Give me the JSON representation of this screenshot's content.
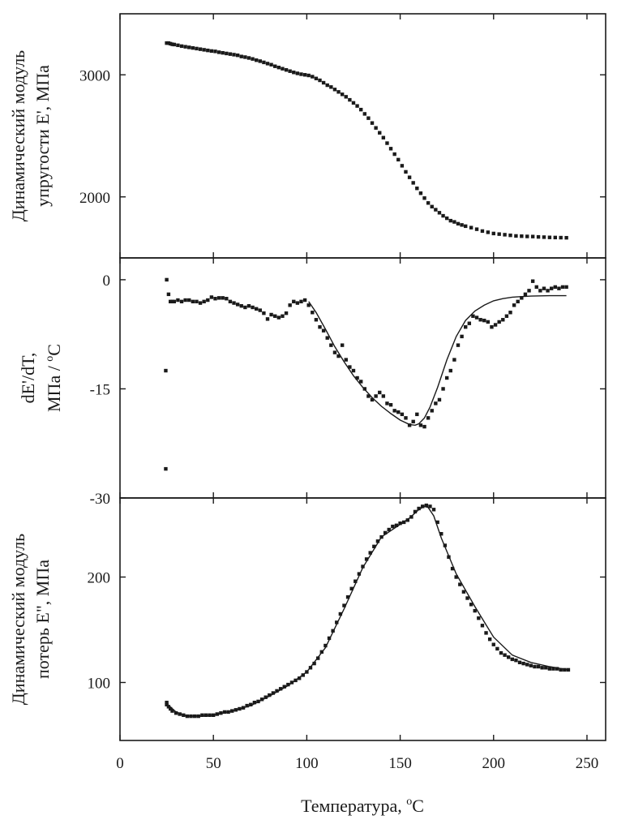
{
  "figure": {
    "xlabel": "Температура, ",
    "xlabel_unit": "C",
    "degree_symbol": "o"
  },
  "chart_data": [
    {
      "type": "scatter",
      "panel": "top",
      "ylabel_lines": [
        "Динамический модуль",
        "упругости E', МПа"
      ],
      "xlim": [
        0,
        260
      ],
      "ylim": [
        1500,
        3500
      ],
      "xticks": [
        0,
        50,
        100,
        150,
        200,
        250
      ],
      "yticks": [
        2000,
        3000
      ],
      "ytick_labels": [
        "2000",
        "3000"
      ],
      "series": [
        {
          "name": "E'",
          "style": "markers",
          "x": [
            25,
            26,
            27,
            28,
            29,
            31,
            33,
            35,
            37,
            39,
            41,
            43,
            45,
            47,
            49,
            51,
            53,
            55,
            57,
            59,
            61,
            63,
            65,
            67,
            69,
            71,
            73,
            75,
            77,
            79,
            81,
            83,
            85,
            87,
            89,
            91,
            93,
            95,
            97,
            99,
            101,
            103,
            105,
            107,
            109,
            111,
            113,
            115,
            117,
            119,
            121,
            123,
            125,
            127,
            129,
            131,
            133,
            135,
            137,
            139,
            141,
            143,
            145,
            147,
            149,
            151,
            153,
            155,
            157,
            159,
            161,
            163,
            165,
            167,
            169,
            171,
            173,
            175,
            177,
            179,
            181,
            183,
            185,
            188,
            191,
            194,
            197,
            200,
            203,
            206,
            209,
            212,
            215,
            218,
            221,
            224,
            227,
            230,
            233,
            236,
            239
          ],
          "y": [
            3260,
            3260,
            3255,
            3250,
            3248,
            3242,
            3235,
            3230,
            3225,
            3220,
            3215,
            3210,
            3205,
            3200,
            3195,
            3192,
            3185,
            3180,
            3175,
            3170,
            3165,
            3160,
            3150,
            3145,
            3138,
            3130,
            3120,
            3112,
            3102,
            3092,
            3083,
            3070,
            3060,
            3050,
            3040,
            3030,
            3020,
            3012,
            3005,
            3000,
            2995,
            2985,
            2970,
            2955,
            2935,
            2915,
            2900,
            2880,
            2860,
            2840,
            2820,
            2795,
            2770,
            2745,
            2715,
            2680,
            2645,
            2605,
            2565,
            2525,
            2485,
            2440,
            2395,
            2350,
            2305,
            2255,
            2205,
            2160,
            2115,
            2070,
            2030,
            1990,
            1950,
            1920,
            1895,
            1870,
            1845,
            1825,
            1805,
            1795,
            1780,
            1770,
            1760,
            1748,
            1735,
            1720,
            1710,
            1700,
            1695,
            1690,
            1685,
            1680,
            1678,
            1676,
            1675,
            1672,
            1670,
            1668,
            1667,
            1666,
            1665
          ]
        }
      ]
    },
    {
      "type": "scatter",
      "panel": "middle",
      "ylabel_lines": [
        "dE'/dT,",
        "МПа / ",
        "C"
      ],
      "xlim": [
        0,
        260
      ],
      "ylim": [
        -30,
        3
      ],
      "xticks": [
        0,
        50,
        100,
        150,
        200,
        250
      ],
      "yticks": [
        -30,
        -15,
        0
      ],
      "ytick_labels": [
        "-30",
        "-15",
        "0"
      ],
      "series": [
        {
          "name": "dE'/dT",
          "style": "markers",
          "x": [
            24.5,
            24.5,
            25,
            26,
            27,
            28,
            29,
            31,
            33,
            35,
            37,
            39,
            41,
            43,
            45,
            47,
            49,
            51,
            53,
            55,
            57,
            59,
            61,
            63,
            65,
            67,
            69,
            71,
            73,
            75,
            77,
            79,
            81,
            83,
            85,
            87,
            89,
            91,
            93,
            95,
            97,
            99,
            101,
            103,
            105,
            107,
            109,
            111,
            113,
            115,
            117,
            119,
            121,
            123,
            125,
            127,
            129,
            131,
            133,
            135,
            137,
            139,
            141,
            143,
            145,
            147,
            149,
            151,
            153,
            155,
            157,
            159,
            161,
            163,
            165,
            167,
            169,
            171,
            173,
            175,
            177,
            179,
            181,
            183,
            185,
            187,
            189,
            191,
            193,
            195,
            197,
            199,
            201,
            203,
            205,
            207,
            209,
            211,
            213,
            215,
            217,
            219,
            221,
            223,
            225,
            227,
            229,
            231,
            233,
            235,
            237,
            239
          ],
          "y": [
            -26,
            -12.5,
            0,
            -2,
            -3,
            -3,
            -3,
            -2.8,
            -3,
            -2.8,
            -2.8,
            -3,
            -3,
            -3.2,
            -3,
            -2.8,
            -2.4,
            -2.6,
            -2.5,
            -2.5,
            -2.6,
            -3,
            -3.2,
            -3.4,
            -3.6,
            -3.8,
            -3.6,
            -3.8,
            -4,
            -4.2,
            -4.6,
            -5.4,
            -4.8,
            -5,
            -5.2,
            -5,
            -4.6,
            -3.5,
            -3,
            -3.2,
            -3,
            -2.8,
            -3.5,
            -4.5,
            -5.5,
            -6.5,
            -7,
            -8,
            -9,
            -10,
            -10.5,
            -9,
            -11,
            -12,
            -12.5,
            -13.5,
            -14,
            -15,
            -16,
            -16.5,
            -16,
            -15.5,
            -16,
            -17,
            -17.2,
            -18,
            -18.2,
            -18.5,
            -19,
            -20,
            -19.5,
            -18.5,
            -20,
            -20.2,
            -19,
            -18,
            -17,
            -16.5,
            -15,
            -13.5,
            -12.5,
            -11,
            -9,
            -7.8,
            -6.5,
            -6,
            -5,
            -5.2,
            -5.5,
            -5.6,
            -5.8,
            -6.5,
            -6.2,
            -5.8,
            -5.5,
            -5,
            -4.5,
            -3.5,
            -3,
            -2.5,
            -2,
            -1.5,
            -0.2,
            -1,
            -1.5,
            -1.2,
            -1.5,
            -1.2,
            -1,
            -1.2,
            -1,
            -1
          ]
        },
        {
          "name": "fit",
          "style": "line",
          "x": [
            101,
            105,
            110,
            115,
            120,
            125,
            130,
            135,
            140,
            145,
            150,
            155,
            158,
            160,
            163,
            166,
            170,
            175,
            180,
            185,
            190,
            195,
            200,
            205,
            210,
            220,
            230,
            239
          ],
          "y": [
            -3,
            -4.5,
            -6.8,
            -9.2,
            -11.3,
            -13.2,
            -14.8,
            -16.2,
            -17.4,
            -18.4,
            -19.3,
            -19.9,
            -20,
            -19.8,
            -19,
            -17.5,
            -14.8,
            -11,
            -7.8,
            -5.6,
            -4.3,
            -3.5,
            -2.9,
            -2.6,
            -2.4,
            -2.25,
            -2.2,
            -2.2
          ]
        }
      ]
    },
    {
      "type": "scatter",
      "panel": "bottom",
      "ylabel_lines": [
        "Динамический модуль",
        "потерь E\", МПа"
      ],
      "xlim": [
        0,
        260
      ],
      "ylim": [
        45,
        275
      ],
      "xticks": [
        0,
        50,
        100,
        150,
        200,
        250
      ],
      "xtick_labels": [
        "0",
        "50",
        "100",
        "150",
        "200",
        "250"
      ],
      "yticks": [
        100,
        200
      ],
      "ytick_labels": [
        "100",
        "200"
      ],
      "series": [
        {
          "name": "E\"",
          "style": "markers",
          "x": [
            25,
            25,
            26,
            27,
            28,
            30,
            32,
            34,
            36,
            38,
            40,
            42,
            44,
            46,
            48,
            50,
            52,
            54,
            56,
            58,
            60,
            62,
            64,
            66,
            68,
            70,
            72,
            74,
            76,
            78,
            80,
            82,
            84,
            86,
            88,
            90,
            92,
            94,
            96,
            98,
            100,
            102,
            104,
            106,
            108,
            110,
            112,
            114,
            116,
            118,
            120,
            122,
            124,
            126,
            128,
            130,
            132,
            134,
            136,
            138,
            140,
            142,
            144,
            146,
            148,
            150,
            152,
            154,
            156,
            158,
            160,
            162,
            164,
            166,
            168,
            170,
            172,
            174,
            176,
            178,
            180,
            182,
            184,
            186,
            188,
            190,
            192,
            194,
            196,
            198,
            200,
            202,
            204,
            206,
            208,
            210,
            212,
            214,
            216,
            218,
            220,
            222,
            224,
            226,
            228,
            230,
            232,
            234,
            236,
            238,
            240
          ],
          "y": [
            81,
            79,
            77,
            75,
            73,
            71,
            70,
            69,
            68,
            68,
            68,
            68,
            69,
            69,
            69,
            69,
            70,
            71,
            72,
            72,
            73,
            74,
            75,
            76,
            78,
            79,
            81,
            82,
            84,
            86,
            88,
            90,
            92,
            94,
            96,
            98,
            100,
            102,
            104,
            107,
            110,
            114,
            118,
            123,
            129,
            135,
            142,
            149,
            157,
            165,
            173,
            181,
            189,
            196,
            203,
            210,
            217,
            223,
            229,
            234,
            238,
            242,
            245,
            248,
            249,
            251,
            252,
            254,
            257,
            262,
            265,
            267,
            268,
            267,
            264,
            252,
            241,
            230,
            219,
            208,
            200,
            193,
            186,
            180,
            174,
            168,
            161,
            154,
            147,
            141,
            136,
            132,
            128,
            126,
            124,
            122,
            121,
            119,
            118,
            117,
            116,
            115,
            115,
            114,
            114,
            113,
            113,
            113,
            112,
            112,
            112
          ]
        },
        {
          "name": "fit",
          "style": "line",
          "x": [
            25,
            30,
            36,
            42,
            50,
            60,
            70,
            80,
            90,
            100,
            110,
            120,
            130,
            140,
            150,
            155,
            160,
            163,
            165,
            168,
            172,
            180,
            190,
            200,
            210,
            220,
            230,
            240
          ],
          "y": [
            80,
            72,
            68,
            68,
            69,
            73,
            78,
            87,
            97,
            110,
            133,
            170,
            209,
            238,
            250,
            256,
            264,
            267,
            266,
            258,
            237,
            203,
            172,
            143,
            126,
            119,
            115,
            112
          ]
        }
      ]
    }
  ]
}
